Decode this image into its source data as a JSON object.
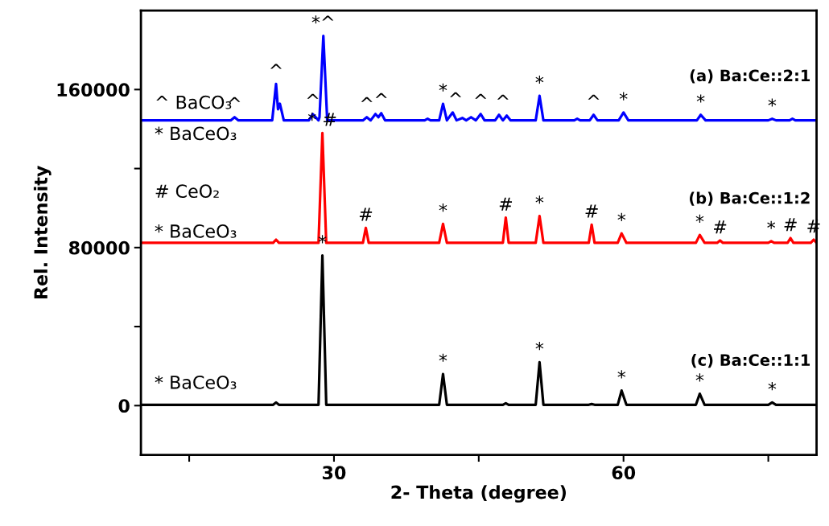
{
  "chart_data": {
    "type": "line",
    "xlabel": "2- Theta (degree)",
    "ylabel": "Rel. Intensity",
    "xlim": [
      10,
      80
    ],
    "ylim": [
      -25000,
      200000
    ],
    "xticks": [
      {
        "value": 15,
        "label": null
      },
      30,
      {
        "value": 45,
        "label": null
      },
      60,
      {
        "value": 75,
        "label": null
      }
    ],
    "yticks": [
      0,
      {
        "value": 40000,
        "label": null
      },
      80000,
      {
        "value": 120000,
        "label": null
      },
      160000
    ],
    "line_style": "solid",
    "series": [
      {
        "name": "(a) Ba:Ce::2:1",
        "color": "#0000ff",
        "x": [
          10,
          19.3,
          19.7,
          20.1,
          23.6,
          24.0,
          24.2,
          24.4,
          24.8,
          27.4,
          27.8,
          28.4,
          28.5,
          28.9,
          29.3,
          33.0,
          33.4,
          33.8,
          34.3,
          34.6,
          34.9,
          35.3,
          39.4,
          39.7,
          40.0,
          40.9,
          41.3,
          41.7,
          42.3,
          42.7,
          43.3,
          43.7,
          44.2,
          44.7,
          45.2,
          45.6,
          46.7,
          47.1,
          47.5,
          47.9,
          48.3,
          50.9,
          51.3,
          51.7,
          54.9,
          55.2,
          55.5,
          56.5,
          56.9,
          57.3,
          59.5,
          60.0,
          60.5,
          67.6,
          68.0,
          68.5,
          75.0,
          75.4,
          75.8,
          77.2,
          77.5,
          77.8,
          80
        ],
        "values": [
          144400,
          144400,
          146000,
          144400,
          144400,
          162800,
          150000,
          152800,
          144400,
          144400,
          147600,
          144400,
          146000,
          187200,
          144400,
          144400,
          146000,
          144400,
          147600,
          146000,
          148000,
          144400,
          144400,
          145200,
          144400,
          144400,
          152800,
          144400,
          148400,
          144400,
          145600,
          144400,
          146000,
          144400,
          147600,
          144400,
          144400,
          147200,
          144400,
          146800,
          144400,
          144400,
          156800,
          144400,
          144400,
          145200,
          144400,
          144400,
          147200,
          144400,
          144400,
          148400,
          144400,
          144400,
          147200,
          144400,
          144400,
          145200,
          144400,
          144400,
          145200,
          144400,
          144400
        ]
      },
      {
        "name": "(b) Ba:Ce::1:2",
        "color": "#ff0000",
        "x": [
          10,
          23.7,
          24.0,
          24.3,
          28.4,
          28.8,
          29.2,
          33.0,
          33.3,
          33.6,
          40.9,
          41.3,
          41.7,
          47.5,
          47.8,
          48.1,
          50.9,
          51.3,
          51.7,
          56.4,
          56.7,
          57.0,
          59.4,
          59.8,
          60.3,
          67.5,
          67.9,
          68.4,
          69.7,
          70.0,
          70.3,
          75.0,
          75.3,
          75.6,
          77.0,
          77.3,
          77.6,
          79.4,
          79.7,
          80
        ],
        "values": [
          82400,
          82400,
          84000,
          82400,
          82400,
          138000,
          82400,
          82400,
          90000,
          82400,
          82400,
          92000,
          82400,
          82400,
          95200,
          82400,
          82400,
          96000,
          82400,
          82400,
          91600,
          82400,
          82400,
          87200,
          82400,
          82400,
          86400,
          82400,
          82400,
          83600,
          82400,
          82400,
          83200,
          82400,
          82400,
          84800,
          82400,
          82400,
          84000,
          82400
        ]
      },
      {
        "name": "(c) Ba:Ce::1:1",
        "color": "#000000",
        "x": [
          10,
          23.7,
          24.0,
          24.3,
          28.4,
          28.8,
          29.2,
          40.9,
          41.3,
          41.7,
          47.5,
          47.8,
          48.1,
          50.9,
          51.3,
          51.7,
          56.4,
          56.7,
          57.0,
          59.4,
          59.8,
          60.3,
          67.5,
          67.9,
          68.4,
          75.0,
          75.4,
          75.8,
          80
        ],
        "values": [
          400,
          400,
          1600,
          400,
          400,
          76000,
          400,
          400,
          16000,
          400,
          400,
          1200,
          400,
          400,
          22000,
          400,
          400,
          800,
          400,
          400,
          7600,
          400,
          400,
          6000,
          400,
          400,
          1600,
          400,
          400
        ]
      }
    ],
    "annotations": [
      "^ BaCO₃",
      "* BaCeO₃",
      "# CeO₂",
      "* BaCeO₃",
      "* BaCeO₃",
      {
        "text": "^",
        "x": 19.7,
        "y": 146000
      },
      {
        "text": "^",
        "x": 24.0,
        "y": 162800
      },
      {
        "text": "^",
        "x": 27.8,
        "y": 147600
      },
      {
        "text": "*^",
        "x": 28.9,
        "y": 187200
      },
      {
        "text": "^",
        "x": 33.4,
        "y": 146000
      },
      {
        "text": "^",
        "x": 34.9,
        "y": 148000
      },
      {
        "text": "*",
        "x": 41.3,
        "y": 152800
      },
      {
        "text": "^",
        "x": 42.6,
        "y": 148400
      },
      {
        "text": "^",
        "x": 45.2,
        "y": 147600
      },
      {
        "text": "^",
        "x": 47.5,
        "y": 147200
      },
      {
        "text": "*",
        "x": 51.3,
        "y": 156800
      },
      {
        "text": "^",
        "x": 56.9,
        "y": 147200
      },
      {
        "text": "*",
        "x": 60.0,
        "y": 148400
      },
      {
        "text": "*",
        "x": 68.0,
        "y": 147200
      },
      {
        "text": "*",
        "x": 75.4,
        "y": 145200
      },
      {
        "text": "* #",
        "x": 28.8,
        "y": 138000
      },
      {
        "text": "#",
        "x": 33.3,
        "y": 90000
      },
      {
        "text": "*",
        "x": 41.3,
        "y": 92000
      },
      {
        "text": "#",
        "x": 47.8,
        "y": 95200
      },
      {
        "text": "*",
        "x": 51.3,
        "y": 96000
      },
      {
        "text": "#",
        "x": 56.7,
        "y": 91600
      },
      {
        "text": "*",
        "x": 59.8,
        "y": 87200
      },
      {
        "text": "*",
        "x": 67.9,
        "y": 86400
      },
      {
        "text": "#",
        "x": 70.0,
        "y": 83600
      },
      {
        "text": "*",
        "x": 75.3,
        "y": 83200
      },
      {
        "text": "#",
        "x": 77.3,
        "y": 84800
      },
      {
        "text": "#",
        "x": 79.7,
        "y": 84000
      },
      {
        "text": "*",
        "x": 28.8,
        "y": 76000
      },
      {
        "text": "*",
        "x": 41.3,
        "y": 16000
      },
      {
        "text": "*",
        "x": 51.3,
        "y": 22000
      },
      {
        "text": "*",
        "x": 59.8,
        "y": 7600
      },
      {
        "text": "*",
        "x": 67.9,
        "y": 6000
      },
      {
        "text": "*",
        "x": 75.4,
        "y": 1600
      }
    ]
  }
}
